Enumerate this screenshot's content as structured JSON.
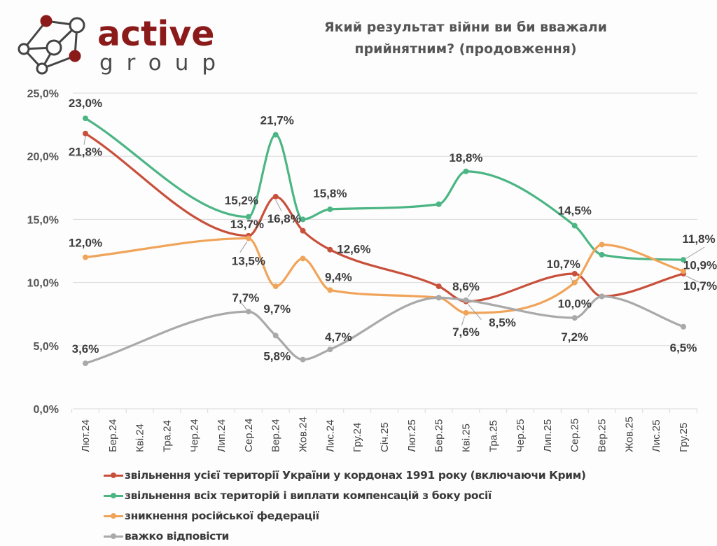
{
  "logo": {
    "word1": "active",
    "word2": "group"
  },
  "title_line1": "Який результат війни ви би вважали",
  "title_line2": "прийнятним? (продовження)",
  "chart_data": {
    "type": "line",
    "title": "Який результат війни ви би вважали прийнятним? (продовження)",
    "xlabel": "",
    "ylabel": "",
    "ylim": [
      0,
      25
    ],
    "yticks": [
      0,
      5,
      10,
      15,
      20,
      25
    ],
    "ytick_labels": [
      "0,0%",
      "5,0%",
      "10,0%",
      "15,0%",
      "20,0%",
      "25,0%"
    ],
    "grid": true,
    "legend_position": "bottom",
    "categories": [
      "Лют.24",
      "Бер.24",
      "Кві.24",
      "Тра.24",
      "Чер.24",
      "Лип.24",
      "Сер.24",
      "Вер.24",
      "Жов.24",
      "Лис.24",
      "Гру.24",
      "Січ.25",
      "Лют.25",
      "Бер.25",
      "Кві.25",
      "Тра.25",
      "Чер.25",
      "Лип.25",
      "Сер.25",
      "Вер.25",
      "Жов.25",
      "Лис.25",
      "Гру.25"
    ],
    "series": [
      {
        "name": "звільнення усієї території України у кордонах 1991 року (включаючи Крим)",
        "color": "#c8503b",
        "points": [
          {
            "cat": "Лют.24",
            "value": 21.8,
            "label": "21,8%"
          },
          {
            "cat": "Сер.24",
            "value": 13.7,
            "label": "13,7%"
          },
          {
            "cat": "Вер.24",
            "value": 16.8,
            "label": "16,8%"
          },
          {
            "cat": "Жов.24",
            "value": 14.1,
            "label": ""
          },
          {
            "cat": "Лис.24",
            "value": 12.6,
            "label": "12,6%"
          },
          {
            "cat": "Бер.25",
            "value": 9.7,
            "label": ""
          },
          {
            "cat": "Кві.25",
            "value": 8.5,
            "label": "8,5%"
          },
          {
            "cat": "Сер.25",
            "value": 10.7,
            "label": "10,7%"
          },
          {
            "cat": "Вер.25",
            "value": 8.9,
            "label": ""
          },
          {
            "cat": "Гру.25",
            "value": 10.7,
            "label": "10,7%"
          }
        ]
      },
      {
        "name": "звільнення всіх територій і виплати компенсацій з боку росії",
        "color": "#4bb584",
        "points": [
          {
            "cat": "Лют.24",
            "value": 23.0,
            "label": "23,0%"
          },
          {
            "cat": "Сер.24",
            "value": 15.2,
            "label": "15,2%"
          },
          {
            "cat": "Вер.24",
            "value": 21.7,
            "label": "21,7%"
          },
          {
            "cat": "Жов.24",
            "value": 15.0,
            "label": ""
          },
          {
            "cat": "Лис.24",
            "value": 15.8,
            "label": "15,8%"
          },
          {
            "cat": "Бер.25",
            "value": 16.2,
            "label": ""
          },
          {
            "cat": "Кві.25",
            "value": 18.8,
            "label": "18,8%"
          },
          {
            "cat": "Сер.25",
            "value": 14.5,
            "label": "14,5%"
          },
          {
            "cat": "Вер.25",
            "value": 12.2,
            "label": ""
          },
          {
            "cat": "Гру.25",
            "value": 11.8,
            "label": "11,8%"
          }
        ]
      },
      {
        "name": "зникнення російської федерації",
        "color": "#f0a45a",
        "points": [
          {
            "cat": "Лют.24",
            "value": 12.0,
            "label": "12,0%"
          },
          {
            "cat": "Сер.24",
            "value": 13.5,
            "label": "13,5%"
          },
          {
            "cat": "Вер.24",
            "value": 9.7,
            "label": "9,7%"
          },
          {
            "cat": "Жов.24",
            "value": 11.9,
            "label": ""
          },
          {
            "cat": "Лис.24",
            "value": 9.4,
            "label": "9,4%"
          },
          {
            "cat": "Бер.25",
            "value": 8.8,
            "label": ""
          },
          {
            "cat": "Кві.25",
            "value": 7.6,
            "label": "7,6%"
          },
          {
            "cat": "Сер.25",
            "value": 10.0,
            "label": "10,0%"
          },
          {
            "cat": "Вер.25",
            "value": 13.0,
            "label": ""
          },
          {
            "cat": "Гру.25",
            "value": 10.9,
            "label": "10,9%"
          }
        ]
      },
      {
        "name": "важко відповісти",
        "color": "#a9a9a9",
        "points": [
          {
            "cat": "Лют.24",
            "value": 3.6,
            "label": "3,6%"
          },
          {
            "cat": "Сер.24",
            "value": 7.7,
            "label": "7,7%"
          },
          {
            "cat": "Вер.24",
            "value": 5.8,
            "label": "5,8%"
          },
          {
            "cat": "Жов.24",
            "value": 3.9,
            "label": ""
          },
          {
            "cat": "Лис.24",
            "value": 4.7,
            "label": "4,7%"
          },
          {
            "cat": "Бер.25",
            "value": 8.8,
            "label": ""
          },
          {
            "cat": "Кві.25",
            "value": 8.6,
            "label": "8,6%"
          },
          {
            "cat": "Сер.25",
            "value": 7.2,
            "label": "7,2%"
          },
          {
            "cat": "Вер.25",
            "value": 8.9,
            "label": ""
          },
          {
            "cat": "Гру.25",
            "value": 6.5,
            "label": "6,5%"
          }
        ]
      }
    ]
  }
}
